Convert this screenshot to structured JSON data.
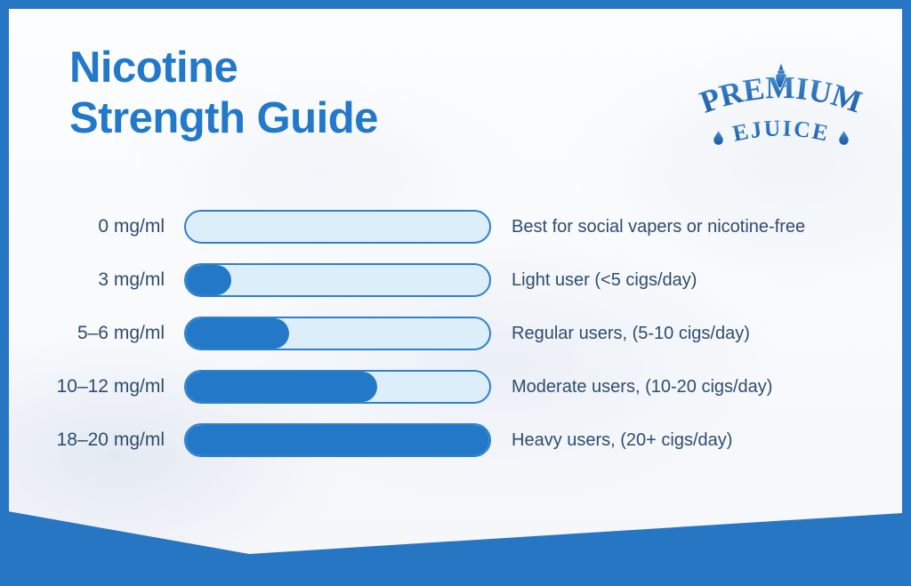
{
  "page": {
    "title_line1": "Nicotine",
    "title_line2": "Strength Guide"
  },
  "logo": {
    "line1": "PREMIUM",
    "line2": "EJUICE"
  },
  "chart_data": {
    "type": "bar",
    "orientation": "horizontal",
    "title": "Nicotine Strength Guide",
    "categories": [
      "0 mg/ml",
      "3 mg/ml",
      "5–6 mg/ml",
      "10–12 mg/ml",
      "18–20 mg/ml"
    ],
    "series": [
      {
        "name": "bar fill (% of track filled)",
        "values": [
          0,
          15,
          34,
          63,
          100
        ]
      }
    ],
    "descriptions": [
      "Best for social vapers or nicotine-free",
      "Light user (<5 cigs/day)",
      "Regular users, (5-10 cigs/day)",
      "Moderate users, (10-20 cigs/day)",
      "Heavy users, (20+ cigs/day)"
    ],
    "value_range": [
      0,
      100
    ],
    "legend": "none",
    "grid": "off"
  },
  "colors": {
    "frame-blue": "#2676c3",
    "title-blue": "#2379c9",
    "bar-border": "#2e80cb",
    "bar-track": "#ddeefb",
    "bar-fill": "#2379c7",
    "text-dark": "#2e4d6d",
    "logo-blue": "#2a6db6"
  }
}
